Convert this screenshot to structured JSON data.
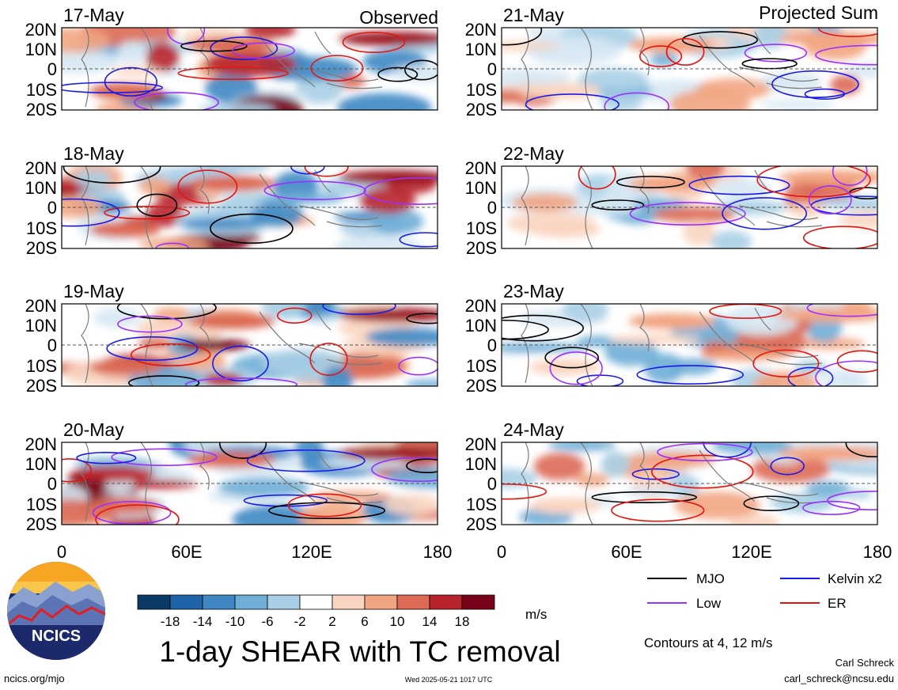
{
  "header": {
    "left_label": "Observed",
    "right_label": "Projected Sum"
  },
  "panels": [
    {
      "date": "17-May",
      "column": "observed",
      "row": 0
    },
    {
      "date": "18-May",
      "column": "observed",
      "row": 1
    },
    {
      "date": "19-May",
      "column": "observed",
      "row": 2
    },
    {
      "date": "20-May",
      "column": "observed",
      "row": 3
    },
    {
      "date": "21-May",
      "column": "projected",
      "row": 0
    },
    {
      "date": "22-May",
      "column": "projected",
      "row": 1
    },
    {
      "date": "23-May",
      "column": "projected",
      "row": 2
    },
    {
      "date": "24-May",
      "column": "projected",
      "row": 3
    }
  ],
  "lat_ticks": [
    "20N",
    "10N",
    "0",
    "10S",
    "20S"
  ],
  "lon_ticks": [
    "0",
    "60E",
    "120E",
    "180"
  ],
  "colorbar": {
    "ticks": [
      "-18",
      "-14",
      "-10",
      "-6",
      "-2",
      "2",
      "6",
      "10",
      "14",
      "18"
    ],
    "colors": [
      "#0b3a66",
      "#1f63a8",
      "#3f88c4",
      "#6faed6",
      "#a9cfe6",
      "#ffffff",
      "#fad5c1",
      "#f2a582",
      "#dc6a55",
      "#b8232b",
      "#7a0218"
    ],
    "units": "m/s"
  },
  "legend": {
    "items": [
      {
        "label": "MJO",
        "color": "#000000"
      },
      {
        "label": "Kelvin x2",
        "color": "#1a1ae6"
      },
      {
        "label": "Low",
        "color": "#9b30ff"
      },
      {
        "label": "ER",
        "color": "#e6140e"
      }
    ],
    "contours_note": "Contours at 4, 12 m/s"
  },
  "footer": {
    "title": "1-day SHEAR with TC removal",
    "logo_text": "NCICS",
    "url": "ncics.org/mjo",
    "timestamp": "Wed 2025-05-21 1017 UTC",
    "author": "Carl Schreck",
    "email": "carl_schreck@ncsu.edu"
  }
}
